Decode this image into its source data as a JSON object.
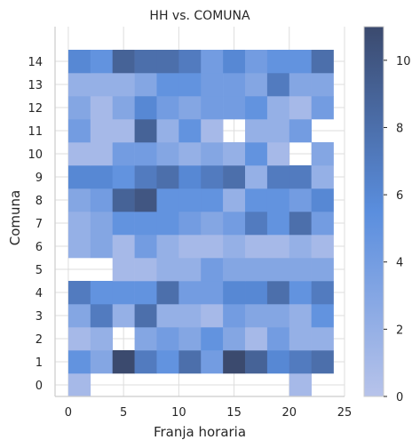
{
  "chart_data": {
    "type": "heatmap",
    "title": "HH vs. COMUNA",
    "xlabel": "Franja horaria",
    "ylabel": "Comuna",
    "xlim": [
      -1.2,
      25
    ],
    "ylim": [
      -0.5,
      15.5
    ],
    "x_ticks": [
      0,
      5,
      10,
      15,
      20,
      25
    ],
    "y_ticks": [
      0,
      1,
      2,
      3,
      4,
      5,
      6,
      7,
      8,
      9,
      10,
      11,
      12,
      13,
      14
    ],
    "x_bin_edges": [
      0,
      2,
      4,
      6,
      8,
      10,
      12,
      14,
      16,
      18,
      20,
      22,
      24
    ],
    "y_bin_edges": [
      -0.5,
      0.5,
      1.5,
      2.5,
      3.5,
      4.5,
      5.5,
      6.5,
      7.5,
      8.5,
      9.5,
      10.5,
      11.5,
      12.5,
      13.5,
      14.5
    ],
    "counts": [
      [
        1,
        null,
        null,
        null,
        null,
        null,
        null,
        null,
        null,
        null,
        1,
        null
      ],
      [
        5,
        3,
        11,
        7,
        5,
        8,
        4,
        11,
        9,
        6,
        7,
        8
      ],
      [
        1,
        2,
        null,
        3,
        4,
        3,
        5,
        3,
        1,
        4,
        2,
        2
      ],
      [
        3,
        7,
        2,
        8,
        2,
        2,
        1,
        4,
        3,
        3,
        2,
        5
      ],
      [
        7,
        5,
        5,
        5,
        8,
        4,
        4,
        6,
        6,
        8,
        5,
        7
      ],
      [
        null,
        null,
        1,
        1,
        2,
        2,
        4,
        3,
        3,
        3,
        3,
        3
      ],
      [
        2,
        3,
        1,
        4,
        2,
        1,
        1,
        2,
        1,
        1,
        2,
        1
      ],
      [
        2,
        3,
        5,
        5,
        5,
        4,
        3,
        4,
        7,
        5,
        8,
        4
      ],
      [
        3,
        4,
        9,
        10,
        5,
        5,
        5,
        2,
        5,
        5,
        4,
        6
      ],
      [
        6,
        6,
        5,
        7,
        8,
        6,
        7,
        8,
        2,
        7,
        7,
        2
      ],
      [
        1,
        1,
        4,
        4,
        3,
        2,
        3,
        2,
        5,
        1,
        null,
        3
      ],
      [
        4,
        1,
        1,
        9,
        2,
        5,
        1,
        null,
        2,
        2,
        4,
        null
      ],
      [
        3,
        1,
        3,
        6,
        4,
        3,
        4,
        4,
        5,
        2,
        1,
        4
      ],
      [
        2,
        2,
        2,
        3,
        5,
        5,
        4,
        4,
        3,
        7,
        3,
        3
      ],
      [
        6,
        5,
        9,
        8,
        8,
        7,
        4,
        6,
        4,
        5,
        5,
        8
      ]
    ],
    "colorbar": {
      "vmin": 0,
      "vmax": 11,
      "ticks": [
        0,
        2,
        4,
        6,
        8,
        10
      ],
      "color_low": "#b7c3ea",
      "color_mid": "#5a8ede",
      "color_high": "#3b4a6e"
    },
    "grid": true,
    "axis_color": "#cccccc",
    "grid_color": "#dddddd"
  }
}
